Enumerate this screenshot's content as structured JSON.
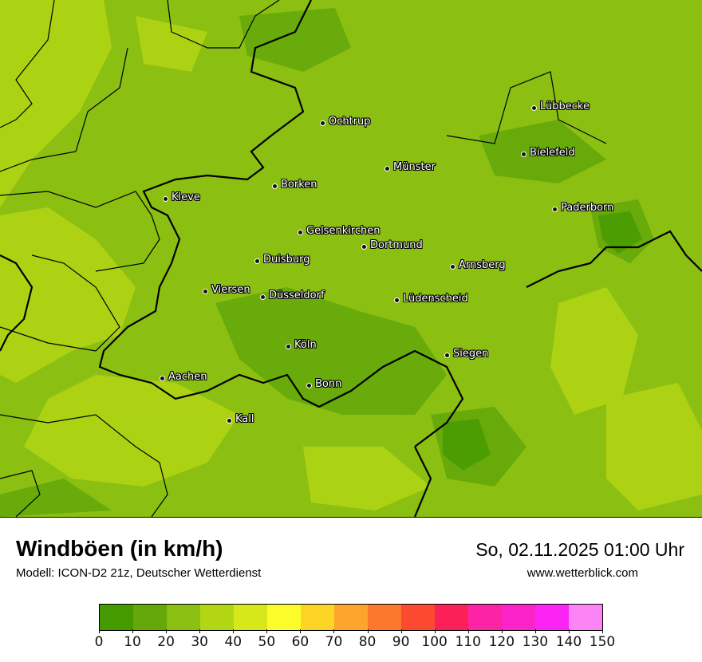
{
  "map": {
    "cities": [
      {
        "name": "Ochtrup"
      },
      {
        "name": "Lübbecke"
      },
      {
        "name": "Bielefeld"
      },
      {
        "name": "Münster"
      },
      {
        "name": "Borken"
      },
      {
        "name": "Kleve"
      },
      {
        "name": "Paderborn"
      },
      {
        "name": "Gelsenkirchen"
      },
      {
        "name": "Dortmund"
      },
      {
        "name": "Duisburg"
      },
      {
        "name": "Arnsberg"
      },
      {
        "name": "Viersen"
      },
      {
        "name": "Düsseldorf"
      },
      {
        "name": "Lüdenscheid"
      },
      {
        "name": "Köln"
      },
      {
        "name": "Siegen"
      },
      {
        "name": "Aachen"
      },
      {
        "name": "Bonn"
      },
      {
        "name": "Kall"
      }
    ]
  },
  "footer": {
    "title": "Windböen (in km/h)",
    "model": "Modell: ICON-D2 21z, Deutscher Wetterdienst",
    "datetime": "So, 02.11.2025 01:00 Uhr",
    "website": "www.wetterblick.com"
  },
  "legend": {
    "unit": "km/h",
    "ticks": [
      "0",
      "10",
      "20",
      "30",
      "40",
      "50",
      "60",
      "70",
      "80",
      "90",
      "100",
      "110",
      "120",
      "130",
      "140",
      "150"
    ],
    "colors": [
      "#459a00",
      "#64a80a",
      "#8bbf12",
      "#b2d614",
      "#d6e81a",
      "#fcfc2a",
      "#fcd424",
      "#fca42c",
      "#fc782c",
      "#fc4a30",
      "#fc2058",
      "#fc24a4",
      "#fc24c8",
      "#fc24f4",
      "#fc84f4"
    ]
  }
}
